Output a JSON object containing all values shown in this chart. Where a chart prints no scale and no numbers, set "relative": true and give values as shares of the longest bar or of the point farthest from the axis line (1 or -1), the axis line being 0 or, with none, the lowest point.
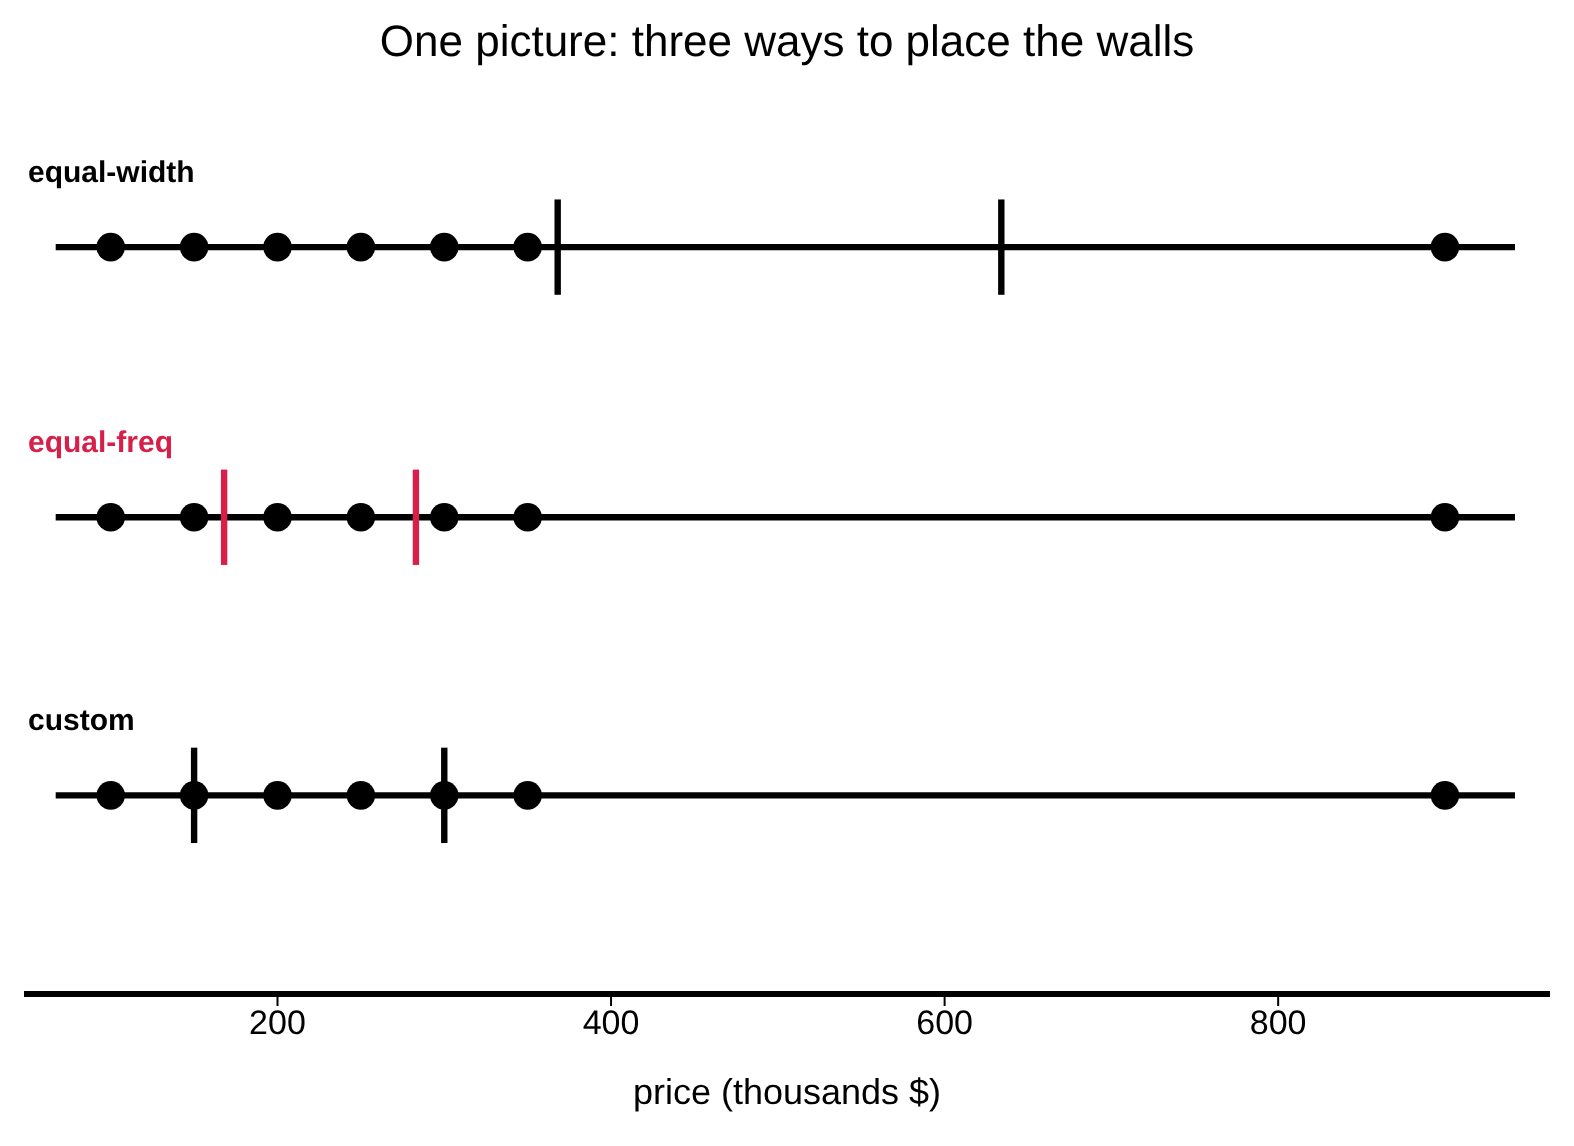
{
  "chart_data": {
    "type": "scatter",
    "title": "One picture: three ways to place the walls",
    "xlabel": "price (thousands $)",
    "relative": true,
    "xlim": [
      48,
      963
    ],
    "xticks": [
      200,
      400,
      600,
      800
    ],
    "tick_labels": "x",
    "grid": false,
    "legend": false,
    "series": [
      {
        "name": "equal-width",
        "marker": "circle",
        "color": "#000000",
        "x": [
          100,
          150,
          200,
          250,
          300,
          350,
          900
        ],
        "values": [
          0.94,
          0.94,
          0.94,
          0.94,
          0.94,
          0.94,
          0.94
        ]
      },
      {
        "type": "line",
        "color": "#000000",
        "x": [
          67,
          942
        ],
        "values": [
          0.94,
          0.94
        ]
      },
      {
        "type": "line",
        "color": "#000000",
        "x": [
          368,
          368
        ],
        "values": [
          1,
          0.88
        ]
      },
      {
        "type": "line",
        "color": "#000000",
        "x": [
          634,
          634
        ],
        "values": [
          1,
          0.88
        ]
      },
      {
        "name": "equal-freq",
        "marker": "circle",
        "color": "#000000",
        "x": [
          100,
          150,
          200,
          250,
          300,
          350,
          900
        ],
        "values": [
          0.6,
          0.6,
          0.6,
          0.6,
          0.6,
          0.6,
          0.6
        ]
      },
      {
        "type": "line",
        "color": "#000000",
        "x": [
          67,
          942
        ],
        "values": [
          0.6,
          0.6
        ]
      },
      {
        "type": "line",
        "color": "#d6204a",
        "x": [
          168,
          168
        ],
        "values": [
          0.66,
          0.54
        ]
      },
      {
        "type": "line",
        "color": "#d6204a",
        "x": [
          283,
          283
        ],
        "values": [
          0.66,
          0.54
        ]
      },
      {
        "name": "custom",
        "marker": "circle",
        "color": "#000000",
        "x": [
          100,
          150,
          200,
          250,
          300,
          350,
          900
        ],
        "values": [
          0.25,
          0.25,
          0.25,
          0.25,
          0.25,
          0.25,
          0.25
        ]
      },
      {
        "type": "line",
        "color": "#000000",
        "x": [
          67,
          942
        ],
        "values": [
          0.25,
          0.25
        ]
      },
      {
        "type": "line",
        "color": "#000000",
        "x": [
          150,
          150
        ],
        "values": [
          0.31,
          0.19
        ]
      },
      {
        "type": "line",
        "color": "#000000",
        "x": [
          300,
          300
        ],
        "values": [
          0.31,
          0.19
        ]
      }
    ]
  }
}
